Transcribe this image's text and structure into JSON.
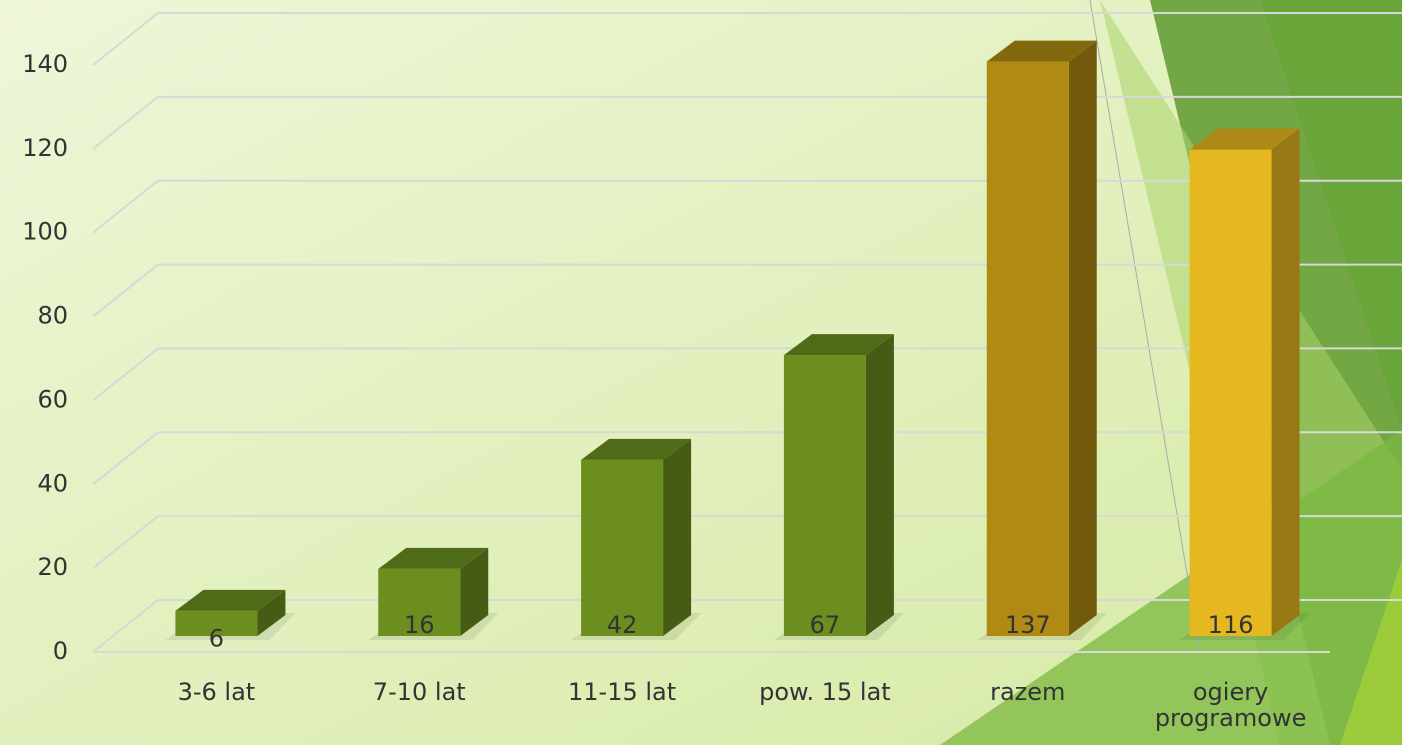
{
  "chart_data": {
    "type": "bar3d",
    "categories": [
      "3-6 lat",
      "7-10 lat",
      "11-15 lat",
      "pow. 15 lat",
      "razem",
      "ogiery programowe"
    ],
    "values": [
      6,
      16,
      42,
      67,
      137,
      116
    ],
    "colors": [
      "#6b8e1e",
      "#6b8e1e",
      "#6b8e1e",
      "#6b8e1e",
      "#b08a12",
      "#e6b820"
    ],
    "ylim": [
      0,
      140
    ],
    "yticks": [
      0,
      20,
      40,
      60,
      80,
      100,
      120,
      140
    ],
    "grid": true,
    "data_labels": true
  }
}
